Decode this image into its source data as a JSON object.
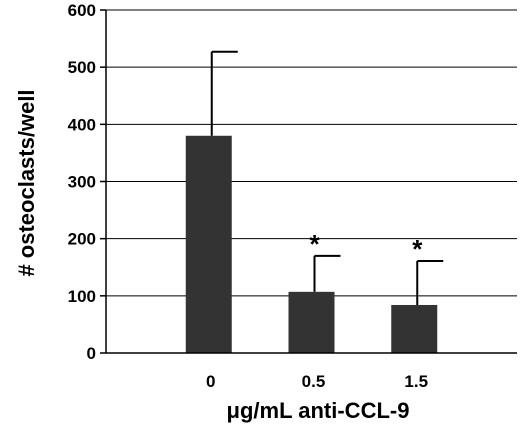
{
  "chart_data": {
    "type": "bar",
    "title": "",
    "xlabel": "μg/mL anti-CCL-9",
    "ylabel": "# osteoclasts/well",
    "categories": [
      "0",
      "0.5",
      "1.5"
    ],
    "values": [
      380,
      107,
      84
    ],
    "error_bars": [
      147,
      63,
      77
    ],
    "significance": [
      "",
      "*",
      "*"
    ],
    "ylim": [
      0,
      600
    ],
    "yticks": [
      "0",
      "100",
      "200",
      "300",
      "400",
      "500",
      "600"
    ],
    "grid": true,
    "legend": "none",
    "colors": {
      "bar": "#333333",
      "grid": "#000000",
      "axis": "#000000"
    }
  }
}
